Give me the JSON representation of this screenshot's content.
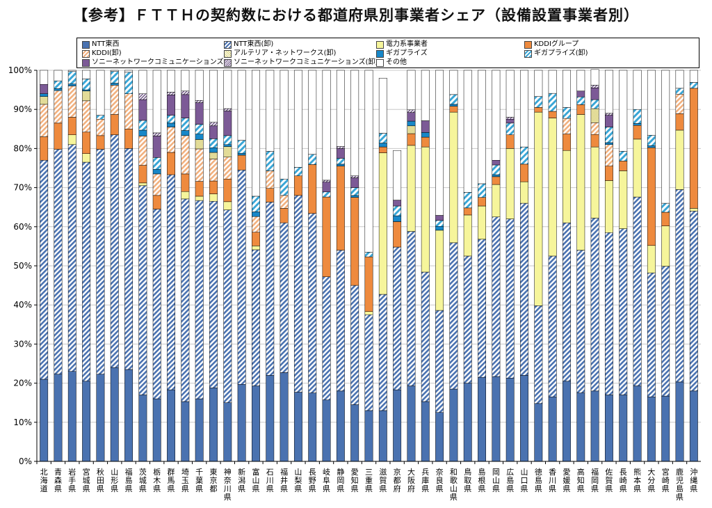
{
  "chart_data": {
    "type": "bar",
    "stacked": true,
    "title": "【参考】ＦＴＴＨの契約数における都道府県別事業者シェア（設備設置事業者別）",
    "ylim": [
      0,
      100
    ],
    "y_ticks": [
      "0%",
      "10%",
      "20%",
      "30%",
      "40%",
      "50%",
      "60%",
      "70%",
      "80%",
      "90%",
      "100%"
    ],
    "grid": true,
    "legend_position": "top",
    "categories": [
      "北海道",
      "青森県",
      "岩手県",
      "宮城県",
      "秋田県",
      "山形県",
      "福島県",
      "茨城県",
      "栃木県",
      "群馬県",
      "埼玉県",
      "千葉県",
      "東京都",
      "神奈川県",
      "新潟県",
      "富山県",
      "石川県",
      "福井県",
      "山梨県",
      "長野県",
      "岐阜県",
      "静岡県",
      "愛知県",
      "三重県",
      "滋賀県",
      "京都府",
      "大阪府",
      "兵庫県",
      "奈良県",
      "和歌山県",
      "鳥取県",
      "島根県",
      "岡山県",
      "広島県",
      "山口県",
      "徳島県",
      "香川県",
      "愛媛県",
      "高知県",
      "福岡県",
      "佐賀県",
      "長崎県",
      "熊本県",
      "大分県",
      "宮崎県",
      "鹿児島県",
      "沖縄県"
    ],
    "series": [
      {
        "name": "NTT東西",
        "pattern": "ntt",
        "values": [
          21,
          22.3,
          23,
          20.5,
          22.3,
          24,
          23.5,
          17,
          16,
          18.3,
          15.3,
          16,
          18.8,
          15,
          19.7,
          19.3,
          22,
          22.7,
          17.7,
          17.5,
          15.7,
          18,
          14.5,
          13,
          13,
          18.3,
          19.3,
          15.3,
          12.5,
          18.5,
          20,
          21.5,
          21.7,
          21.3,
          22,
          14.8,
          16.5,
          20.5,
          17.5,
          18,
          17,
          17,
          19.3,
          16.5,
          16.7,
          20.3,
          18
        ]
      },
      {
        "name": "NTT東西(卸)",
        "pattern": "nttw",
        "values": [
          56,
          57.5,
          58,
          56,
          57.5,
          59.5,
          56.5,
          53.5,
          48.5,
          55,
          51.8,
          50.7,
          47.7,
          49.3,
          54.8,
          34.8,
          44.3,
          38.3,
          50.3,
          45.9,
          31.5,
          36,
          30.5,
          24.5,
          29.7,
          36.5,
          39.5,
          33.1,
          26.1,
          37.4,
          32.5,
          35.3,
          40.8,
          40.7,
          44,
          25,
          36,
          40.5,
          36.5,
          44.2,
          41.5,
          42.5,
          48.3,
          31.7,
          33.2,
          49.2,
          46
        ]
      },
      {
        "name": "電力系事業者",
        "pattern": "elec",
        "values": [
          0,
          0,
          2.5,
          2.2,
          0,
          0,
          0,
          0.7,
          0,
          0,
          1.9,
          1.1,
          1.9,
          2.1,
          0,
          1,
          0,
          0,
          0,
          0,
          0,
          0,
          0,
          0.8,
          36.2,
          0,
          22,
          32,
          20.5,
          33.4,
          10.5,
          8.5,
          8.3,
          18,
          5.5,
          49.5,
          35.3,
          18.5,
          34.7,
          18.2,
          13.3,
          14.8,
          14.8,
          7,
          10.3,
          15.2,
          0.7
        ]
      },
      {
        "name": "KDDIグループ",
        "pattern": "kddi",
        "values": [
          6,
          6.7,
          4.5,
          5.5,
          3.5,
          5.2,
          5,
          4.5,
          3.5,
          5.7,
          4.5,
          3.8,
          3.3,
          5.8,
          3.8,
          3.5,
          3.5,
          3.7,
          5,
          12.5,
          20.4,
          21.5,
          22.5,
          14,
          1.5,
          6.5,
          3,
          2.5,
          0,
          1.5,
          1.8,
          2.2,
          2,
          3.5,
          4.5,
          1.2,
          1.7,
          4.2,
          2.5,
          3.2,
          3.7,
          2.5,
          3.5,
          25,
          3.5,
          4.2,
          30.7
        ]
      },
      {
        "name": "KDDI(卸)",
        "pattern": "kddiw",
        "values": [
          8.3,
          8.3,
          8,
          8,
          4.2,
          7.5,
          9,
          7.5,
          5.5,
          6.5,
          9.8,
          8.3,
          5.6,
          5.6,
          0,
          4,
          4.5,
          3.3,
          0,
          0,
          0,
          0,
          0,
          0,
          0,
          0,
          0,
          0,
          0,
          0,
          0,
          0,
          0,
          0,
          0,
          0,
          0,
          4,
          0,
          3,
          5.5,
          0,
          0,
          0,
          0,
          5,
          0
        ]
      },
      {
        "name": "アルテリア・ネットワークス(卸)",
        "pattern": "alt",
        "values": [
          2,
          0,
          0,
          2.5,
          0,
          0,
          0,
          0,
          0,
          0,
          0,
          2.4,
          1.7,
          2.7,
          0,
          0,
          0,
          0,
          0,
          0,
          0,
          0,
          0,
          0,
          0,
          0,
          2,
          0,
          0,
          0,
          0,
          0,
          0,
          0,
          0,
          0,
          0,
          0,
          0,
          3.6,
          0,
          0,
          0,
          0,
          0,
          0,
          0
        ]
      },
      {
        "name": "ギガプライズ",
        "pattern": "giga",
        "values": [
          0.7,
          0.5,
          0.5,
          0.3,
          0,
          0.5,
          0,
          1.5,
          1.2,
          1,
          1.3,
          1.4,
          1.2,
          0.5,
          0.5,
          1.2,
          0,
          0,
          0,
          0,
          0,
          0.5,
          0.5,
          0,
          1,
          1.5,
          1.2,
          1.2,
          1,
          0.5,
          0,
          0,
          0.5,
          0,
          0,
          0,
          0,
          0,
          0,
          0,
          0.5,
          0,
          0.5,
          0.5,
          0,
          0,
          0
        ]
      },
      {
        "name": "ギガプライズ(卸)",
        "pattern": "gigaw",
        "values": [
          0,
          2,
          3.2,
          2.8,
          1,
          3,
          5.5,
          2.5,
          3,
          2,
          3.2,
          2.5,
          2.3,
          2.3,
          3.3,
          4,
          5,
          4.2,
          2.2,
          2.6,
          1.3,
          1.5,
          2,
          1.2,
          2.5,
          2.5,
          0,
          0,
          1.5,
          2.5,
          4,
          3.5,
          2.5,
          3,
          4.4,
          2.8,
          4.6,
          2.8,
          2,
          2.3,
          4,
          2.5,
          3.6,
          2.7,
          2.3,
          1.5,
          1.5
        ]
      },
      {
        "name": "ソニーネットワークコミュニケーションズ",
        "pattern": "sony",
        "values": [
          2.4,
          0,
          0,
          0,
          0,
          0,
          0,
          5.3,
          5.5,
          5.2,
          6,
          5.5,
          3.3,
          6.3,
          0,
          0,
          0,
          0,
          0,
          0,
          2.5,
          2.5,
          2.5,
          0,
          0,
          1.5,
          2.2,
          3,
          1.3,
          0,
          0,
          0,
          1.2,
          1,
          0,
          0,
          0,
          0,
          1.5,
          3,
          3,
          0,
          0,
          0,
          0,
          0,
          0
        ]
      },
      {
        "name": "ソニーネットワークコミュニケーションズ(卸)",
        "pattern": "sonyw",
        "values": [
          0,
          0,
          0,
          0,
          0,
          0,
          0,
          1.5,
          0.8,
          0.7,
          0.9,
          0.6,
          0.9,
          0.6,
          0,
          0,
          0,
          0,
          0,
          0,
          0.5,
          0.5,
          0.5,
          0,
          0,
          0,
          0.7,
          0,
          0,
          0,
          0,
          0,
          0,
          0.5,
          0,
          0,
          0,
          0,
          0,
          0.7,
          0.5,
          0,
          0,
          0,
          0,
          0,
          0
        ]
      },
      {
        "name": "その他",
        "pattern": "other",
        "values": [
          3.6,
          2.7,
          0.3,
          2.2,
          11.5,
          0.3,
          0.5,
          6,
          16,
          5.6,
          5.3,
          7.7,
          13.3,
          9.8,
          17.9,
          32.2,
          20.7,
          27.8,
          24.8,
          21.5,
          28.1,
          19.5,
          27,
          46.5,
          14.1,
          12.7,
          10.1,
          12.9,
          37.1,
          6.2,
          31.2,
          29,
          23,
          12,
          19.6,
          6.7,
          5.9,
          9.5,
          5.3,
          4,
          11,
          20.7,
          10,
          16.6,
          34,
          4.6,
          3.1
        ]
      }
    ]
  }
}
